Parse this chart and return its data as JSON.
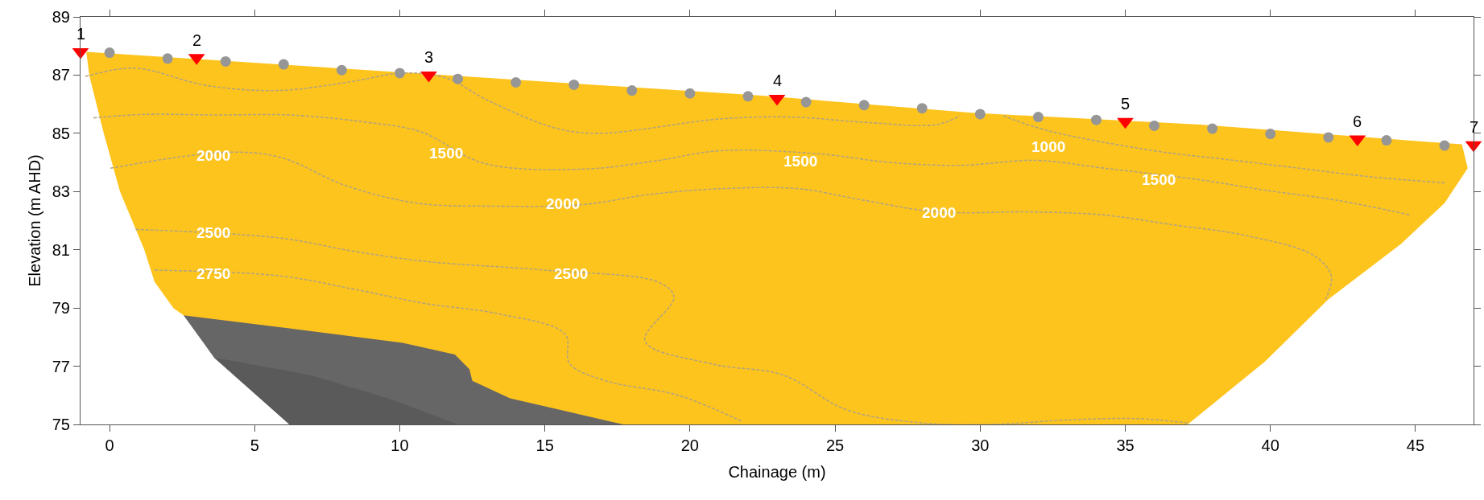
{
  "chart_data": {
    "type": "line",
    "xlabel": "Chainage (m)",
    "ylabel": "Elevation (m AHD)",
    "xlim": [
      -1,
      47
    ],
    "xticks": [
      0,
      5,
      10,
      15,
      20,
      25,
      30,
      35,
      40,
      45
    ],
    "ylim": [
      75,
      89
    ],
    "yticks": [
      75,
      77,
      79,
      81,
      83,
      85,
      87,
      89
    ],
    "series": [
      {
        "type": "area",
        "color": "#fec41e",
        "x": [
          -0.8,
          22.4,
          29.8,
          37.6,
          46.6,
          46.8,
          46.0,
          44.5,
          42.0,
          39.8,
          37.15,
          17.7,
          6.2,
          2.55,
          2.2,
          1.55,
          1.2,
          0.36,
          -0.2,
          -0.7,
          -0.8
        ],
        "values": [
          87.8,
          86.3,
          85.7,
          85.3,
          84.62,
          83.8,
          82.6,
          81.2,
          79.3,
          77.15,
          75.0,
          75.0,
          75.0,
          78.75,
          79.0,
          79.9,
          81.0,
          83.0,
          85.0,
          87.0,
          87.8
        ]
      },
      {
        "type": "area",
        "color": "#666666",
        "x": [
          2.55,
          6.2,
          10.1,
          11.9,
          12.4,
          12.5,
          13.8,
          17.7,
          6.2,
          3.6,
          2.55
        ],
        "values": [
          78.75,
          78.3,
          77.8,
          77.4,
          76.9,
          76.5,
          75.9,
          75.0,
          75.0,
          77.3,
          78.75
        ]
      },
      {
        "type": "area",
        "color": "#5a5a5a",
        "x": [
          3.6,
          6.9,
          9.6,
          12.0,
          6.2,
          3.6
        ],
        "values": [
          77.3,
          76.7,
          75.9,
          75.0,
          75.0,
          77.3
        ]
      },
      {
        "line_style": "dashed",
        "color": "#b3a57c",
        "x": [
          -0.83,
          0.88,
          3.3,
          5.8,
          8.3,
          10.1,
          11.6,
          13.0,
          15.3,
          16.8,
          21.1,
          23.5,
          26.0,
          28.5,
          29.3
        ],
        "values": [
          86.95,
          87.24,
          86.65,
          86.47,
          86.77,
          87.07,
          86.9,
          86.15,
          85.2,
          85.0,
          85.5,
          85.56,
          85.38,
          85.3,
          85.6
        ]
      },
      {
        "line_style": "dashed",
        "color": "#b3a57c",
        "x": [
          30.8,
          32.3,
          36.0,
          38.5,
          41.0,
          43.5,
          46.0
        ],
        "values": [
          85.6,
          85.1,
          84.4,
          84.1,
          83.8,
          83.5,
          83.3
        ]
      },
      {
        "line_style": "dashed",
        "color": "#b3a57c",
        "x": [
          -0.55,
          1.2,
          3.7,
          6.2,
          8.7,
          10.7,
          12.9,
          16.3,
          18.8,
          21.0,
          24.4,
          26.9,
          29.3,
          31.9,
          34.3,
          37.6,
          39.8,
          42.3,
          44.8
        ],
        "values": [
          85.53,
          85.65,
          85.63,
          85.63,
          85.4,
          85.06,
          83.97,
          83.77,
          84.05,
          84.4,
          84.3,
          84.0,
          83.9,
          84.07,
          83.8,
          83.4,
          83.05,
          82.7,
          82.2
        ]
      },
      {
        "line_style": "dashed",
        "color": "#b3a57c",
        "x": [
          0.03,
          4.05,
          5.9,
          8.15,
          10.6,
          13.0,
          16.3,
          18.6,
          21.1,
          23.7,
          26.0,
          28.5,
          31.7,
          34.2,
          36.7,
          39.1,
          41.5,
          42.1,
          41.9
        ],
        "values": [
          83.8,
          84.35,
          84.17,
          83.2,
          82.6,
          82.5,
          82.55,
          82.9,
          83.1,
          83.1,
          82.7,
          82.3,
          82.3,
          82.2,
          81.85,
          81.5,
          80.8,
          80.1,
          79.3
        ]
      },
      {
        "line_style": "dashed",
        "color": "#b3a57c",
        "x": [
          0.9,
          5.9,
          8.4,
          10.9,
          15.0,
          18.95,
          19.45,
          18.45,
          20.8,
          23.2,
          25.4,
          27.9,
          30.4,
          32.9,
          35.4,
          37.15
        ],
        "values": [
          81.7,
          81.4,
          80.95,
          80.6,
          80.3,
          79.87,
          79.37,
          77.87,
          77.07,
          76.7,
          75.5,
          75.06,
          75.0,
          75.15,
          75.2,
          75.05
        ]
      },
      {
        "line_style": "dashed",
        "color": "#b3a57c",
        "x": [
          1.55,
          5.9,
          8.4,
          10.9,
          13.4,
          15.7,
          15.85,
          17.1,
          19.6,
          21.8
        ],
        "values": [
          80.3,
          80.1,
          79.65,
          79.15,
          78.8,
          78.1,
          77.1,
          76.5,
          76.0,
          75.1
        ]
      },
      {
        "type": "scatter",
        "marker": "circle",
        "color": "#969696",
        "x": [
          0,
          2,
          4,
          6,
          8,
          10,
          12,
          14,
          16,
          18,
          20,
          22,
          24,
          26,
          28,
          30,
          32,
          34,
          36,
          38,
          40,
          42,
          44,
          46
        ],
        "values": [
          87.77,
          87.57,
          87.47,
          87.37,
          87.17,
          87.07,
          86.87,
          86.75,
          86.67,
          86.47,
          86.37,
          86.27,
          86.07,
          85.97,
          85.86,
          85.66,
          85.56,
          85.46,
          85.26,
          85.16,
          84.98,
          84.86,
          84.76,
          84.58
        ]
      },
      {
        "type": "scatter",
        "marker": "triangle",
        "color": "#ff0000",
        "x": [
          -1,
          3,
          11,
          23,
          35,
          43,
          47
        ],
        "values": [
          87.8,
          87.6,
          87.0,
          86.2,
          85.4,
          84.8,
          84.6
        ]
      }
    ],
    "annotations": [
      {
        "text": "1",
        "x": -1,
        "y": 87.8
      },
      {
        "text": "2",
        "x": 3,
        "y": 87.6
      },
      {
        "text": "3",
        "x": 11,
        "y": 87.0
      },
      {
        "text": "4",
        "x": 23,
        "y": 86.2
      },
      {
        "text": "5",
        "x": 35,
        "y": 85.4
      },
      {
        "text": "6",
        "x": 43,
        "y": 84.8
      },
      {
        "text": "7",
        "x": 47,
        "y": 84.6
      },
      "2000",
      "1500",
      "2000",
      "1500",
      "2000",
      "1000",
      "1500",
      "2500",
      "2750",
      "2500"
    ]
  }
}
